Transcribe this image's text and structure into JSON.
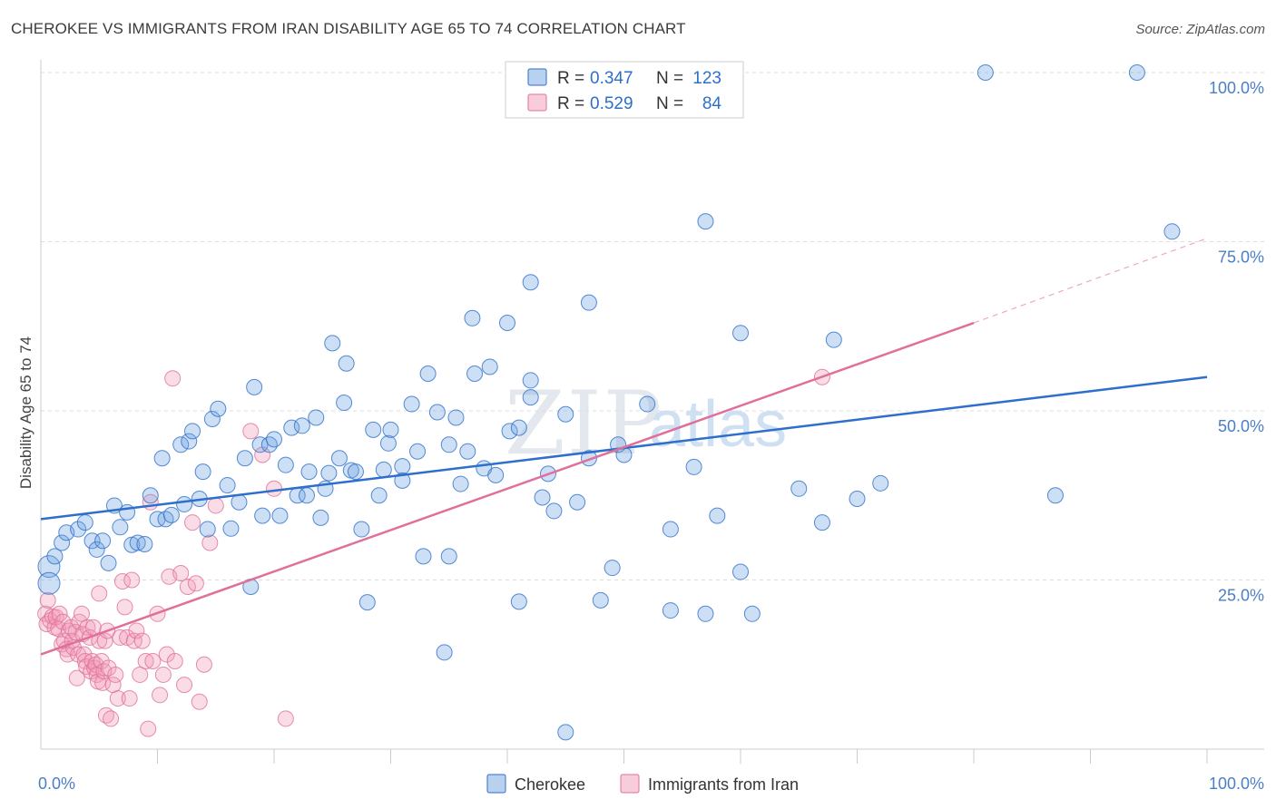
{
  "title": "CHEROKEE VS IMMIGRANTS FROM IRAN DISABILITY AGE 65 TO 74 CORRELATION CHART",
  "source": "Source: ZipAtlas.com",
  "watermark": {
    "zip": "ZIP",
    "atlas": "atlas"
  },
  "colors": {
    "cherokee": "#6fa3e0",
    "cherokee_line": "#2d6fcb",
    "iran": "#f19bb8",
    "iran_line": "#e0709a",
    "tick": "#4a7fc8"
  },
  "legend_box": {
    "rows": [
      {
        "r_label": "R = ",
        "r_value": "0.347",
        "n_label": "N = ",
        "n_value": "123"
      },
      {
        "r_label": "R = ",
        "r_value": "0.529",
        "n_label": "N = ",
        "n_value": "84"
      }
    ]
  },
  "bottom_legend": {
    "cherokee": "Cherokee",
    "iran": "Immigrants from Iran"
  },
  "chart_data": {
    "type": "scatter",
    "ylabel": "Disability Age 65 to 74",
    "xlim": [
      0,
      1.0
    ],
    "ylim": [
      0,
      1.0
    ],
    "x_tick_labels": {
      "left": "0.0%",
      "right": "100.0%"
    },
    "y_ticks": [
      {
        "value": 0.25,
        "label": "25.0%"
      },
      {
        "value": 0.5,
        "label": "50.0%"
      },
      {
        "value": 0.75,
        "label": "75.0%"
      },
      {
        "value": 1.0,
        "label": "100.0%"
      }
    ],
    "grid": "horizontal dashed",
    "series": [
      {
        "name": "Cherokee",
        "trend": {
          "x0": 0.0,
          "y0": 0.34,
          "x1": 1.0,
          "y1": 0.55
        },
        "points": [
          [
            0.007,
            0.27
          ],
          [
            0.007,
            0.245
          ],
          [
            0.012,
            0.285
          ],
          [
            0.018,
            0.305
          ],
          [
            0.022,
            0.32
          ],
          [
            0.032,
            0.325
          ],
          [
            0.038,
            0.335
          ],
          [
            0.044,
            0.308
          ],
          [
            0.048,
            0.295
          ],
          [
            0.053,
            0.308
          ],
          [
            0.058,
            0.275
          ],
          [
            0.063,
            0.36
          ],
          [
            0.068,
            0.328
          ],
          [
            0.074,
            0.35
          ],
          [
            0.078,
            0.302
          ],
          [
            0.083,
            0.305
          ],
          [
            0.089,
            0.303
          ],
          [
            0.094,
            0.375
          ],
          [
            0.1,
            0.34
          ],
          [
            0.104,
            0.43
          ],
          [
            0.107,
            0.34
          ],
          [
            0.112,
            0.346
          ],
          [
            0.12,
            0.45
          ],
          [
            0.123,
            0.362
          ],
          [
            0.127,
            0.455
          ],
          [
            0.13,
            0.47
          ],
          [
            0.136,
            0.37
          ],
          [
            0.139,
            0.41
          ],
          [
            0.143,
            0.325
          ],
          [
            0.147,
            0.488
          ],
          [
            0.152,
            0.503
          ],
          [
            0.16,
            0.39
          ],
          [
            0.163,
            0.326
          ],
          [
            0.17,
            0.365
          ],
          [
            0.175,
            0.43
          ],
          [
            0.18,
            0.24
          ],
          [
            0.183,
            0.535
          ],
          [
            0.188,
            0.45
          ],
          [
            0.19,
            0.345
          ],
          [
            0.196,
            0.45
          ],
          [
            0.2,
            0.458
          ],
          [
            0.205,
            0.345
          ],
          [
            0.21,
            0.42
          ],
          [
            0.215,
            0.475
          ],
          [
            0.22,
            0.375
          ],
          [
            0.224,
            0.478
          ],
          [
            0.228,
            0.375
          ],
          [
            0.23,
            0.41
          ],
          [
            0.236,
            0.49
          ],
          [
            0.24,
            0.342
          ],
          [
            0.244,
            0.385
          ],
          [
            0.247,
            0.408
          ],
          [
            0.25,
            0.6
          ],
          [
            0.256,
            0.43
          ],
          [
            0.26,
            0.512
          ],
          [
            0.262,
            0.57
          ],
          [
            0.266,
            0.412
          ],
          [
            0.27,
            0.41
          ],
          [
            0.275,
            0.325
          ],
          [
            0.28,
            0.217
          ],
          [
            0.285,
            0.472
          ],
          [
            0.29,
            0.375
          ],
          [
            0.294,
            0.413
          ],
          [
            0.298,
            0.452
          ],
          [
            0.3,
            0.472
          ],
          [
            0.31,
            0.418
          ],
          [
            0.31,
            0.397
          ],
          [
            0.318,
            0.51
          ],
          [
            0.323,
            0.44
          ],
          [
            0.328,
            0.285
          ],
          [
            0.332,
            0.555
          ],
          [
            0.34,
            0.498
          ],
          [
            0.346,
            0.143
          ],
          [
            0.35,
            0.285
          ],
          [
            0.35,
            0.45
          ],
          [
            0.356,
            0.49
          ],
          [
            0.36,
            0.392
          ],
          [
            0.366,
            0.44
          ],
          [
            0.37,
            0.637
          ],
          [
            0.372,
            0.555
          ],
          [
            0.38,
            0.415
          ],
          [
            0.385,
            0.565
          ],
          [
            0.39,
            0.405
          ],
          [
            0.4,
            0.63
          ],
          [
            0.402,
            0.47
          ],
          [
            0.41,
            0.475
          ],
          [
            0.41,
            0.218
          ],
          [
            0.42,
            0.545
          ],
          [
            0.42,
            0.69
          ],
          [
            0.42,
            0.52
          ],
          [
            0.43,
            0.372
          ],
          [
            0.435,
            0.407
          ],
          [
            0.44,
            0.352
          ],
          [
            0.45,
            0.025
          ],
          [
            0.45,
            0.495
          ],
          [
            0.46,
            0.365
          ],
          [
            0.47,
            0.66
          ],
          [
            0.47,
            0.43
          ],
          [
            0.48,
            0.22
          ],
          [
            0.49,
            0.268
          ],
          [
            0.495,
            0.45
          ],
          [
            0.5,
            0.435
          ],
          [
            0.52,
            0.51
          ],
          [
            0.54,
            0.325
          ],
          [
            0.54,
            0.205
          ],
          [
            0.56,
            0.417
          ],
          [
            0.57,
            0.78
          ],
          [
            0.57,
            0.2
          ],
          [
            0.58,
            0.345
          ],
          [
            0.6,
            0.615
          ],
          [
            0.6,
            0.262
          ],
          [
            0.61,
            0.2
          ],
          [
            0.65,
            0.385
          ],
          [
            0.67,
            0.335
          ],
          [
            0.68,
            0.605
          ],
          [
            0.7,
            0.37
          ],
          [
            0.72,
            0.393
          ],
          [
            0.81,
            1.0
          ],
          [
            0.87,
            0.375
          ],
          [
            0.94,
            1.0
          ],
          [
            0.97,
            0.765
          ]
        ]
      },
      {
        "name": "Immigrants from Iran",
        "trend": {
          "x0": 0.0,
          "y0": 0.14,
          "x1": 0.8,
          "y1": 0.63,
          "x_ext": 1.0,
          "y_ext": 0.755
        },
        "points": [
          [
            0.004,
            0.2
          ],
          [
            0.005,
            0.185
          ],
          [
            0.006,
            0.22
          ],
          [
            0.008,
            0.19
          ],
          [
            0.01,
            0.196
          ],
          [
            0.012,
            0.18
          ],
          [
            0.013,
            0.195
          ],
          [
            0.015,
            0.178
          ],
          [
            0.016,
            0.2
          ],
          [
            0.018,
            0.155
          ],
          [
            0.019,
            0.188
          ],
          [
            0.02,
            0.16
          ],
          [
            0.022,
            0.148
          ],
          [
            0.023,
            0.14
          ],
          [
            0.024,
            0.175
          ],
          [
            0.026,
            0.18
          ],
          [
            0.027,
            0.16
          ],
          [
            0.028,
            0.15
          ],
          [
            0.03,
            0.173
          ],
          [
            0.031,
            0.105
          ],
          [
            0.032,
            0.14
          ],
          [
            0.033,
            0.188
          ],
          [
            0.035,
            0.2
          ],
          [
            0.036,
            0.17
          ],
          [
            0.037,
            0.14
          ],
          [
            0.038,
            0.13
          ],
          [
            0.039,
            0.122
          ],
          [
            0.04,
            0.18
          ],
          [
            0.042,
            0.165
          ],
          [
            0.043,
            0.115
          ],
          [
            0.044,
            0.13
          ],
          [
            0.045,
            0.18
          ],
          [
            0.046,
            0.12
          ],
          [
            0.047,
            0.125
          ],
          [
            0.048,
            0.11
          ],
          [
            0.049,
            0.1
          ],
          [
            0.05,
            0.16
          ],
          [
            0.052,
            0.13
          ],
          [
            0.053,
            0.098
          ],
          [
            0.054,
            0.115
          ],
          [
            0.055,
            0.16
          ],
          [
            0.056,
            0.05
          ],
          [
            0.057,
            0.175
          ],
          [
            0.058,
            0.12
          ],
          [
            0.06,
            0.045
          ],
          [
            0.062,
            0.095
          ],
          [
            0.064,
            0.11
          ],
          [
            0.066,
            0.075
          ],
          [
            0.068,
            0.165
          ],
          [
            0.07,
            0.248
          ],
          [
            0.072,
            0.21
          ],
          [
            0.074,
            0.165
          ],
          [
            0.076,
            0.075
          ],
          [
            0.078,
            0.25
          ],
          [
            0.08,
            0.16
          ],
          [
            0.082,
            0.175
          ],
          [
            0.085,
            0.11
          ],
          [
            0.087,
            0.16
          ],
          [
            0.09,
            0.13
          ],
          [
            0.092,
            0.03
          ],
          [
            0.094,
            0.365
          ],
          [
            0.096,
            0.13
          ],
          [
            0.1,
            0.2
          ],
          [
            0.102,
            0.08
          ],
          [
            0.105,
            0.11
          ],
          [
            0.108,
            0.14
          ],
          [
            0.11,
            0.255
          ],
          [
            0.113,
            0.548
          ],
          [
            0.115,
            0.13
          ],
          [
            0.12,
            0.26
          ],
          [
            0.123,
            0.095
          ],
          [
            0.126,
            0.24
          ],
          [
            0.13,
            0.335
          ],
          [
            0.133,
            0.245
          ],
          [
            0.136,
            0.07
          ],
          [
            0.14,
            0.125
          ],
          [
            0.145,
            0.305
          ],
          [
            0.15,
            0.36
          ],
          [
            0.18,
            0.47
          ],
          [
            0.19,
            0.435
          ],
          [
            0.2,
            0.385
          ],
          [
            0.21,
            0.045
          ],
          [
            0.67,
            0.55
          ],
          [
            0.05,
            0.23
          ]
        ]
      }
    ]
  }
}
